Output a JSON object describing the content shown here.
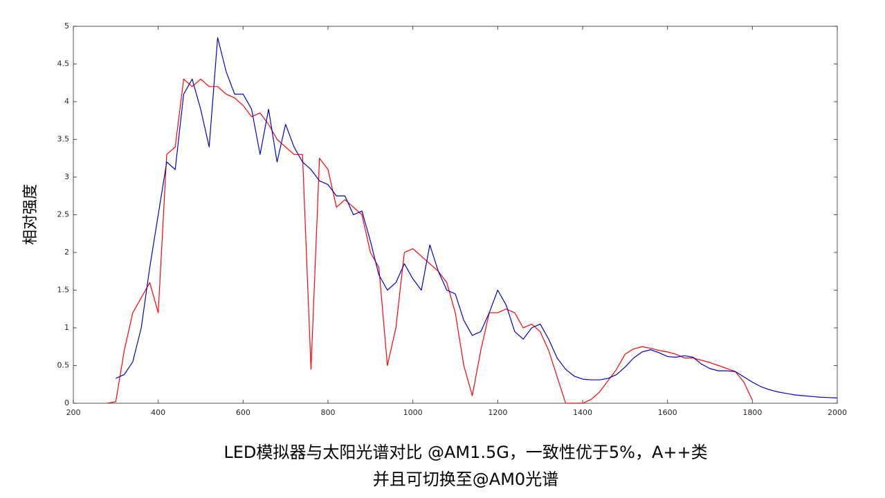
{
  "chart_data": {
    "type": "line",
    "title": "LED模拟器与太阳光谱对比 @AM1.5G，一致性优于5%，A++类",
    "subtitle": "并且可切换至@AM0光谱",
    "y_label": "相对强度",
    "xlim": [
      200,
      2000
    ],
    "ylim": [
      0,
      5
    ],
    "xticks": [
      200,
      400,
      600,
      800,
      1000,
      1200,
      1400,
      1600,
      1800,
      2000
    ],
    "yticks": [
      0,
      0.5,
      1,
      1.5,
      2,
      2.5,
      3,
      3.5,
      4,
      4.5,
      5
    ],
    "grid": false,
    "x": [
      280,
      300,
      320,
      340,
      360,
      380,
      400,
      420,
      440,
      460,
      480,
      500,
      520,
      540,
      560,
      580,
      600,
      620,
      640,
      660,
      680,
      700,
      720,
      740,
      760,
      780,
      800,
      820,
      840,
      860,
      880,
      900,
      920,
      940,
      960,
      980,
      1000,
      1020,
      1040,
      1060,
      1080,
      1100,
      1120,
      1140,
      1160,
      1180,
      1200,
      1220,
      1240,
      1260,
      1280,
      1300,
      1320,
      1340,
      1360,
      1380,
      1400,
      1420,
      1440,
      1460,
      1480,
      1500,
      1520,
      1540,
      1560,
      1580,
      1600,
      1620,
      1640,
      1660,
      1680,
      1700,
      1720,
      1740,
      1760,
      1780,
      1800,
      1820,
      1840,
      1860,
      1880,
      1900,
      1920,
      1940,
      1960,
      1980,
      2000
    ],
    "series": [
      {
        "color": "#ff0000",
        "values": [
          0,
          0.02,
          0.7,
          1.2,
          1.4,
          1.6,
          1.2,
          3.3,
          3.4,
          4.3,
          4.2,
          4.3,
          4.2,
          4.2,
          4.1,
          4.05,
          3.95,
          3.8,
          3.85,
          3.7,
          3.5,
          3.4,
          3.3,
          3.3,
          0.45,
          3.25,
          3.1,
          2.6,
          2.7,
          2.6,
          2.5,
          2.0,
          1.8,
          0.5,
          1.0,
          2.0,
          2.05,
          1.95,
          1.85,
          1.75,
          1.6,
          1.2,
          0.5,
          0.1,
          0.7,
          1.2,
          1.2,
          1.25,
          1.2,
          1.0,
          1.05,
          0.95,
          0.7,
          0.35,
          0,
          0,
          0,
          0.05,
          0.15,
          0.3,
          0.45,
          0.65,
          0.72,
          0.75,
          0.73,
          0.7,
          0.68,
          0.65,
          0.6,
          0.6,
          0.57,
          0.54,
          0.5,
          0.46,
          0.42,
          0.28,
          0.04,
          null,
          null,
          null,
          null,
          null,
          null,
          null,
          null,
          null,
          null
        ]
      },
      {
        "color": "#0000cc",
        "values": [
          null,
          0.33,
          0.38,
          0.55,
          1.0,
          1.8,
          2.5,
          3.2,
          3.1,
          4.1,
          4.3,
          3.9,
          3.4,
          4.85,
          4.4,
          4.1,
          4.1,
          3.9,
          3.3,
          3.9,
          3.2,
          3.7,
          3.4,
          3.2,
          3.1,
          2.95,
          2.9,
          2.75,
          2.75,
          2.5,
          2.55,
          2.15,
          1.7,
          1.5,
          1.6,
          1.85,
          1.65,
          1.5,
          2.1,
          1.75,
          1.5,
          1.45,
          1.1,
          0.9,
          0.95,
          1.2,
          1.5,
          1.3,
          0.95,
          0.85,
          1.0,
          1.05,
          0.85,
          0.6,
          0.45,
          0.36,
          0.32,
          0.31,
          0.31,
          0.33,
          0.38,
          0.48,
          0.6,
          0.68,
          0.71,
          0.67,
          0.62,
          0.61,
          0.63,
          0.61,
          0.52,
          0.46,
          0.43,
          0.43,
          0.42,
          0.35,
          0.28,
          0.22,
          0.18,
          0.15,
          0.13,
          0.11,
          0.1,
          0.09,
          0.08,
          0.075,
          0.07
        ]
      }
    ]
  }
}
